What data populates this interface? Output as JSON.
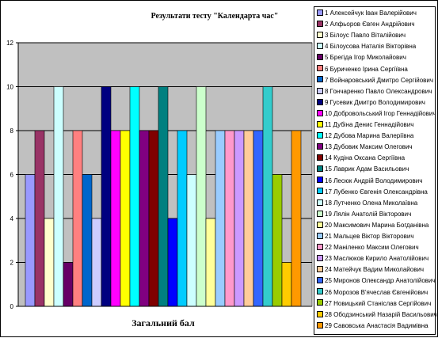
{
  "chart_data": {
    "type": "bar",
    "title": "Результати тесту \"Календарта час\"",
    "xlabel": "Загальний бал",
    "ylabel": "",
    "ylim": [
      0,
      12
    ],
    "yticks": [
      "0",
      "2",
      "4",
      "6",
      "8",
      "10",
      "12"
    ],
    "grid": true,
    "legend_position": "right",
    "categories": [
      "Загальний бал"
    ],
    "series": [
      {
        "name": "1 Алексейчук Іван Валерійович",
        "values": [
          6
        ],
        "color": "#9999ff"
      },
      {
        "name": "2 Алфьоров Євген Андрійович",
        "values": [
          8
        ],
        "color": "#993366"
      },
      {
        "name": "3 Білоус Павло Віталійович",
        "values": [
          4
        ],
        "color": "#ffffcc"
      },
      {
        "name": "4 Білоусова Наталія Вікторівна",
        "values": [
          10
        ],
        "color": "#ccffff"
      },
      {
        "name": "5 Брегіда Ігор Миколайович",
        "values": [
          2
        ],
        "color": "#660066"
      },
      {
        "name": "6 Буриченко Ірина Сергіївна",
        "values": [
          8
        ],
        "color": "#ff8080"
      },
      {
        "name": "7 Войнаровський Дмитро Сергійович",
        "values": [
          6
        ],
        "color": "#0066cc"
      },
      {
        "name": "8 Гончаренко Павло Олександрович",
        "values": [
          4
        ],
        "color": "#ccccff"
      },
      {
        "name": "9 Гусевик Дмитро Володимирович",
        "values": [
          10
        ],
        "color": "#000080"
      },
      {
        "name": "10 Добровольський Ігор Геннадійович",
        "values": [
          8
        ],
        "color": "#ff00ff"
      },
      {
        "name": "11 Дубіна Денис Геннадійович",
        "values": [
          8
        ],
        "color": "#ffff00"
      },
      {
        "name": "12 Дубова Марина Валеріївна",
        "values": [
          10
        ],
        "color": "#00ffff"
      },
      {
        "name": "13 Дубовик Максим Олегович",
        "values": [
          8
        ],
        "color": "#800080"
      },
      {
        "name": "14 Кудіна Оксана Сергіївна",
        "values": [
          8
        ],
        "color": "#800000"
      },
      {
        "name": "15 Лаврик Адам Васильович",
        "values": [
          10
        ],
        "color": "#008080"
      },
      {
        "name": "16 Лесюк Андрій Володимирович",
        "values": [
          4
        ],
        "color": "#0000ff"
      },
      {
        "name": "17 Лубенко Євгенія Олександрівна",
        "values": [
          8
        ],
        "color": "#00ccff"
      },
      {
        "name": "18 Лутченко Олена Миколаївна",
        "values": [
          6
        ],
        "color": "#ccffff"
      },
      {
        "name": "19 Лялін Анатолій Вікторович",
        "values": [
          10
        ],
        "color": "#ccffcc"
      },
      {
        "name": "20 Максимович Марина Богданівна",
        "values": [
          4
        ],
        "color": "#ffff99"
      },
      {
        "name": "21 Мальцев Віктор Вікторович",
        "values": [
          8
        ],
        "color": "#99ccff"
      },
      {
        "name": "22 Маніленко Максим Олегович",
        "values": [
          8
        ],
        "color": "#ff99cc"
      },
      {
        "name": "23 Маслюков Кирило Анатолійович",
        "values": [
          8
        ],
        "color": "#cc99ff"
      },
      {
        "name": "24 Матейчук Вадим Миколайович",
        "values": [
          8
        ],
        "color": "#ffcc99"
      },
      {
        "name": "25 Миронов Олександр Анатолійович",
        "values": [
          8
        ],
        "color": "#3366ff"
      },
      {
        "name": "26 Морозов В'ячеслав Євгенійович",
        "values": [
          10
        ],
        "color": "#33cccc"
      },
      {
        "name": "27 Новицький Станіслав Сергійович",
        "values": [
          6
        ],
        "color": "#99cc00"
      },
      {
        "name": "28 Ободзинський Назарій Васильович",
        "values": [
          2
        ],
        "color": "#ffcc00"
      },
      {
        "name": "29 Савовська Анастасія Вадимівна",
        "values": [
          8
        ],
        "color": "#ff9900"
      }
    ]
  },
  "colors": {
    "plot_background": "#c0c0c0",
    "gridline": "#000000"
  }
}
